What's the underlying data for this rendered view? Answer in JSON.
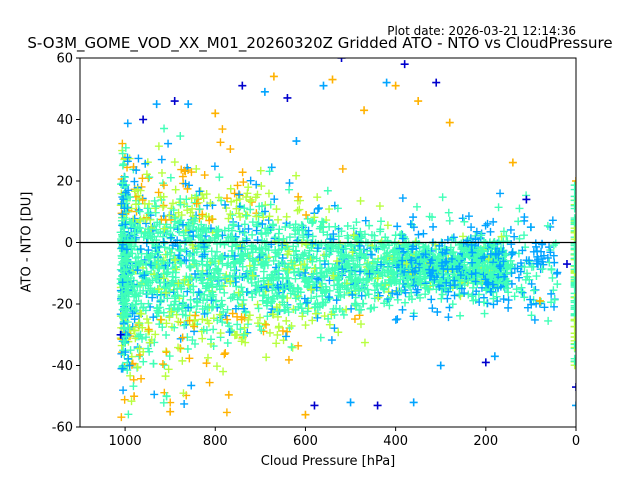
{
  "plot_date": "Plot date: 2026-03-21 12:14:36",
  "chart_data": {
    "type": "scatter",
    "title": "S-O3M_GOME_VOD_XX_M01_20260320Z Gridded ATO - NTO vs CloudPressure",
    "xlabel": "Cloud Pressure [hPa]",
    "ylabel": "ATO - NTO [DU]",
    "xlim": [
      1100,
      0
    ],
    "ylim": [
      -60,
      60
    ],
    "x_axis": "inverted",
    "x_ticks": [
      1000,
      800,
      600,
      400,
      200,
      0
    ],
    "y_ticks": [
      -60,
      -40,
      -20,
      0,
      20,
      40,
      60
    ],
    "reference_line_y": 0,
    "marker": "plus",
    "grid": false,
    "legend": "none",
    "colors": {
      "dense_core": "#40ffb7",
      "high_scatter": "#ffb200",
      "mid_scatter": "#b7ff40",
      "edge_scatter": "#00a4ff",
      "outliers": "#0000cd",
      "reference_line": "#000000"
    },
    "series": [
      {
        "x": 1010,
        "y": -30
      },
      {
        "x": 990,
        "y": -40
      },
      {
        "x": 980,
        "y": -50
      },
      {
        "x": 960,
        "y": 40
      },
      {
        "x": 930,
        "y": 45
      },
      {
        "x": 900,
        "y": -55
      },
      {
        "x": 890,
        "y": 46
      },
      {
        "x": 860,
        "y": 45
      },
      {
        "x": 800,
        "y": 42
      },
      {
        "x": 740,
        "y": 51
      },
      {
        "x": 690,
        "y": 49
      },
      {
        "x": 670,
        "y": 54
      },
      {
        "x": 640,
        "y": 47
      },
      {
        "x": 620,
        "y": 33
      },
      {
        "x": 600,
        "y": -56
      },
      {
        "x": 580,
        "y": -53
      },
      {
        "x": 560,
        "y": 51
      },
      {
        "x": 540,
        "y": 53
      },
      {
        "x": 520,
        "y": 60
      },
      {
        "x": 500,
        "y": -52
      },
      {
        "x": 470,
        "y": 43
      },
      {
        "x": 440,
        "y": -53
      },
      {
        "x": 420,
        "y": 52
      },
      {
        "x": 400,
        "y": 51
      },
      {
        "x": 380,
        "y": 58
      },
      {
        "x": 360,
        "y": -52
      },
      {
        "x": 350,
        "y": 46
      },
      {
        "x": 310,
        "y": 52
      },
      {
        "x": 300,
        "y": -40
      },
      {
        "x": 280,
        "y": 39
      },
      {
        "x": 200,
        "y": -39
      },
      {
        "x": 180,
        "y": -37
      },
      {
        "x": 140,
        "y": 26
      },
      {
        "x": 110,
        "y": 14
      },
      {
        "x": 100,
        "y": 5
      },
      {
        "x": 80,
        "y": -19
      },
      {
        "x": 20,
        "y": -7
      },
      {
        "x": 0,
        "y": -53
      },
      {
        "x": 0,
        "y": 20
      },
      {
        "x": 0,
        "y": -47
      }
    ]
  }
}
